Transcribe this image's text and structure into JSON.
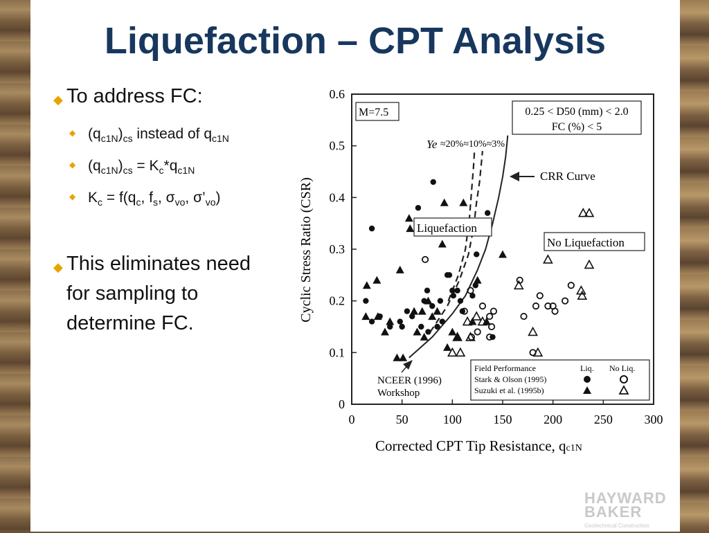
{
  "slide": {
    "title": "Liquefaction – CPT Analysis",
    "bullet1": "To address FC:",
    "bullet2_line1": "This eliminates need",
    "bullet2_line2": "for sampling to",
    "bullet2_line3": "determine FC.",
    "logo_line1": "HAYWARD",
    "logo_line2": "BAKER",
    "logo_tag": "Geotechnical Construction"
  },
  "colors": {
    "title": "#17375e",
    "bullet_diamond": "#e8a400"
  },
  "chart_data": {
    "type": "scatter",
    "xlabel": "Corrected CPT Tip Resistance, q",
    "xlabel_sub": "c1N",
    "ylabel": "Cyclic Stress Ratio (CSR)",
    "xlim": [
      0,
      300
    ],
    "ylim": [
      0,
      0.6
    ],
    "xticks": [
      "0",
      "50",
      "100",
      "150",
      "200",
      "250",
      "300"
    ],
    "yticks": [
      "0",
      "0.1",
      "0.2",
      "0.3",
      "0.4",
      "0.5",
      "0.6"
    ],
    "grid": false,
    "magnitude_box": "M=7.5",
    "range_box_line1": "0.25 < D50 (mm) < 2.0",
    "range_box_line2": "FC (%) < 5",
    "ye_label": "Ye",
    "strain_labels": "≈20%≈10%≈3%",
    "crr_label": "CRR Curve",
    "liq_label": "Liquefaction",
    "noliq_label": "No Liquefaction",
    "nceer_line1": "NCEER (1996)",
    "nceer_line2": "Workshop",
    "legend": {
      "title": "Field Performance",
      "col_liq": "Liq.",
      "col_noliq": "No Liq.",
      "row1": "Stark & Olson (1995)",
      "row2": "Suzuki et al. (1995b)"
    },
    "curves": [
      {
        "name": "≈3%",
        "style": "solid",
        "points": [
          [
            57,
            0.09
          ],
          [
            80,
            0.13
          ],
          [
            100,
            0.175
          ],
          [
            113,
            0.21
          ],
          [
            125,
            0.26
          ],
          [
            133,
            0.3
          ],
          [
            140,
            0.35
          ],
          [
            146,
            0.4
          ],
          [
            150,
            0.44
          ],
          [
            153,
            0.48
          ],
          [
            155,
            0.52
          ]
        ]
      },
      {
        "name": "≈10%",
        "style": "dashed",
        "points": [
          [
            78,
            0.14
          ],
          [
            95,
            0.19
          ],
          [
            107,
            0.24
          ],
          [
            116,
            0.29
          ],
          [
            121,
            0.34
          ],
          [
            124,
            0.39
          ],
          [
            127,
            0.43
          ],
          [
            129,
            0.47
          ],
          [
            130,
            0.49
          ]
        ]
      },
      {
        "name": "≈20%",
        "style": "dashed",
        "points": [
          [
            96,
            0.2
          ],
          [
            106,
            0.25
          ],
          [
            113,
            0.3
          ],
          [
            117,
            0.36
          ],
          [
            119,
            0.41
          ],
          [
            121,
            0.46
          ],
          [
            122,
            0.49
          ]
        ]
      }
    ],
    "stark_liq": [
      [
        14,
        0.2
      ],
      [
        20,
        0.34
      ],
      [
        20,
        0.16
      ],
      [
        28,
        0.17
      ],
      [
        38,
        0.15
      ],
      [
        48,
        0.16
      ],
      [
        50,
        0.15
      ],
      [
        55,
        0.18
      ],
      [
        60,
        0.17
      ],
      [
        66,
        0.38
      ],
      [
        69,
        0.15
      ],
      [
        72,
        0.2
      ],
      [
        75,
        0.22
      ],
      [
        76,
        0.14
      ],
      [
        80,
        0.19
      ],
      [
        81,
        0.43
      ],
      [
        85,
        0.15
      ],
      [
        88,
        0.2
      ],
      [
        90,
        0.16
      ],
      [
        95,
        0.25
      ],
      [
        97,
        0.25
      ],
      [
        100,
        0.22
      ],
      [
        101,
        0.21
      ],
      [
        105,
        0.22
      ],
      [
        108,
        0.2
      ],
      [
        110,
        0.18
      ],
      [
        120,
        0.21
      ],
      [
        123,
        0.23
      ],
      [
        124,
        0.29
      ],
      [
        135,
        0.37
      ],
      [
        140,
        0.13
      ]
    ],
    "stark_noliq": [
      [
        73,
        0.28
      ],
      [
        112,
        0.18
      ],
      [
        118,
        0.22
      ],
      [
        119,
        0.13
      ],
      [
        125,
        0.14
      ],
      [
        130,
        0.19
      ],
      [
        137,
        0.17
      ],
      [
        137,
        0.13
      ],
      [
        139,
        0.15
      ],
      [
        141,
        0.18
      ],
      [
        167,
        0.24
      ],
      [
        171,
        0.17
      ],
      [
        180,
        0.1
      ],
      [
        183,
        0.19
      ],
      [
        187,
        0.21
      ],
      [
        195,
        0.19
      ],
      [
        200,
        0.19
      ],
      [
        202,
        0.18
      ],
      [
        212,
        0.2
      ],
      [
        218,
        0.23
      ]
    ],
    "suzuki_liq": [
      [
        14,
        0.17
      ],
      [
        15,
        0.23
      ],
      [
        26,
        0.17
      ],
      [
        25,
        0.24
      ],
      [
        33,
        0.14
      ],
      [
        38,
        0.16
      ],
      [
        45,
        0.09
      ],
      [
        48,
        0.26
      ],
      [
        51,
        0.09
      ],
      [
        57,
        0.36
      ],
      [
        58,
        0.34
      ],
      [
        62,
        0.18
      ],
      [
        65,
        0.14
      ],
      [
        70,
        0.18
      ],
      [
        72,
        0.13
      ],
      [
        76,
        0.2
      ],
      [
        80,
        0.17
      ],
      [
        85,
        0.18
      ],
      [
        90,
        0.31
      ],
      [
        92,
        0.39
      ],
      [
        95,
        0.11
      ],
      [
        100,
        0.14
      ],
      [
        105,
        0.13
      ],
      [
        111,
        0.39
      ],
      [
        120,
        0.16
      ],
      [
        125,
        0.24
      ],
      [
        134,
        0.16
      ],
      [
        150,
        0.29
      ]
    ],
    "suzuki_noliq": [
      [
        100,
        0.1
      ],
      [
        105,
        0.13
      ],
      [
        108,
        0.1
      ],
      [
        115,
        0.16
      ],
      [
        118,
        0.13
      ],
      [
        124,
        0.17
      ],
      [
        130,
        0.16
      ],
      [
        166,
        0.23
      ],
      [
        180,
        0.14
      ],
      [
        185,
        0.1
      ],
      [
        195,
        0.28
      ],
      [
        228,
        0.22
      ],
      [
        229,
        0.21
      ],
      [
        230,
        0.37
      ],
      [
        236,
        0.37
      ],
      [
        236,
        0.27
      ]
    ]
  }
}
